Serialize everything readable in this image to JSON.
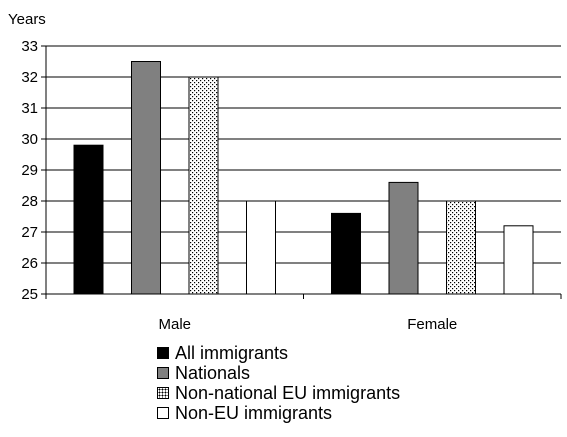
{
  "chart_data": {
    "type": "bar",
    "ylabel": "Years",
    "ylim": [
      25,
      33
    ],
    "yticks": [
      25,
      26,
      27,
      28,
      29,
      30,
      31,
      32,
      33
    ],
    "categories": [
      "Male",
      "Female"
    ],
    "series": [
      {
        "name": "All immigrants",
        "values": [
          29.8,
          27.6
        ],
        "color": "#000000",
        "pattern": "solid"
      },
      {
        "name": "Nationals",
        "values": [
          32.5,
          28.6
        ],
        "color": "#808080",
        "pattern": "solid"
      },
      {
        "name": "Non-national EU immigrants",
        "values": [
          32.0,
          28.0
        ],
        "color": "#ffffff",
        "pattern": "dots"
      },
      {
        "name": "Non-EU immigrants",
        "values": [
          28.0,
          27.2
        ],
        "color": "#ffffff",
        "pattern": "solid"
      }
    ],
    "legend_position": "bottom",
    "grid": "horizontal"
  }
}
